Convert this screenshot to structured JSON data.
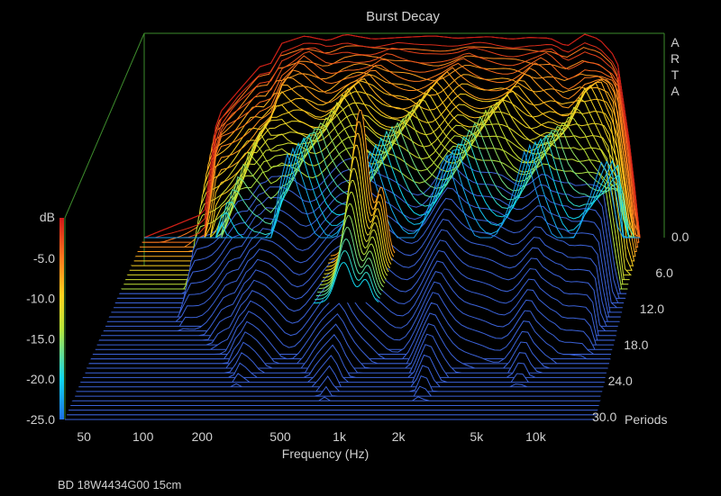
{
  "chart_data": {
    "type": "waterfall",
    "title": "Burst Decay",
    "xlabel": "Frequency (Hz)",
    "x_ticks": [
      {
        "v": 50,
        "label": "50"
      },
      {
        "v": 100,
        "label": "100"
      },
      {
        "v": 200,
        "label": "200"
      },
      {
        "v": 500,
        "label": "500"
      },
      {
        "v": 1000,
        "label": "1k"
      },
      {
        "v": 2000,
        "label": "2k"
      },
      {
        "v": 5000,
        "label": "5k"
      },
      {
        "v": 10000,
        "label": "10k"
      }
    ],
    "xlim": [
      40,
      20000
    ],
    "x_scale": "log",
    "z_axis": {
      "unit": "Periods",
      "ticks": [
        "0.0",
        "6.0",
        "12.0",
        "18.0",
        "24.0",
        "30.0"
      ],
      "range": [
        0,
        30
      ]
    },
    "y_axis": {
      "label": "dB",
      "ticks": [
        "-5.0",
        "-10.0",
        "-15.0",
        "-20.0",
        "-25.0"
      ],
      "range": [
        -25,
        0
      ]
    },
    "colors": {
      "background": "#000000",
      "frame": "#3d8c2c",
      "floor": "#3b62d8",
      "scale": [
        "#1e6ee6",
        "#10d8f0",
        "#b8e63a",
        "#ffd21e",
        "#ff7a1e",
        "#d01818"
      ]
    },
    "response_shape": {
      "description_points_hz_db": [
        [
          40,
          -25
        ],
        [
          85,
          -22
        ],
        [
          100,
          -10
        ],
        [
          130,
          -7
        ],
        [
          170,
          -4
        ],
        [
          200,
          -3.5
        ],
        [
          220,
          -1.2
        ],
        [
          300,
          -0.2
        ],
        [
          400,
          -0.8
        ],
        [
          500,
          0
        ],
        [
          700,
          -0.6
        ],
        [
          1000,
          -0.4
        ],
        [
          1500,
          -0.2
        ],
        [
          2000,
          -0.5
        ],
        [
          3000,
          -0.3
        ],
        [
          4000,
          -0.6
        ],
        [
          5000,
          -0.4
        ],
        [
          6500,
          -0.5
        ],
        [
          8000,
          -1.5
        ],
        [
          10000,
          0
        ],
        [
          12000,
          -0.6
        ],
        [
          15000,
          -3
        ],
        [
          18000,
          -15
        ],
        [
          20000,
          -25
        ]
      ]
    }
  },
  "annotation": {
    "arta_letters": [
      "A",
      "R",
      "T",
      "A"
    ],
    "footer": "BD 18W4434G00 15cm"
  }
}
